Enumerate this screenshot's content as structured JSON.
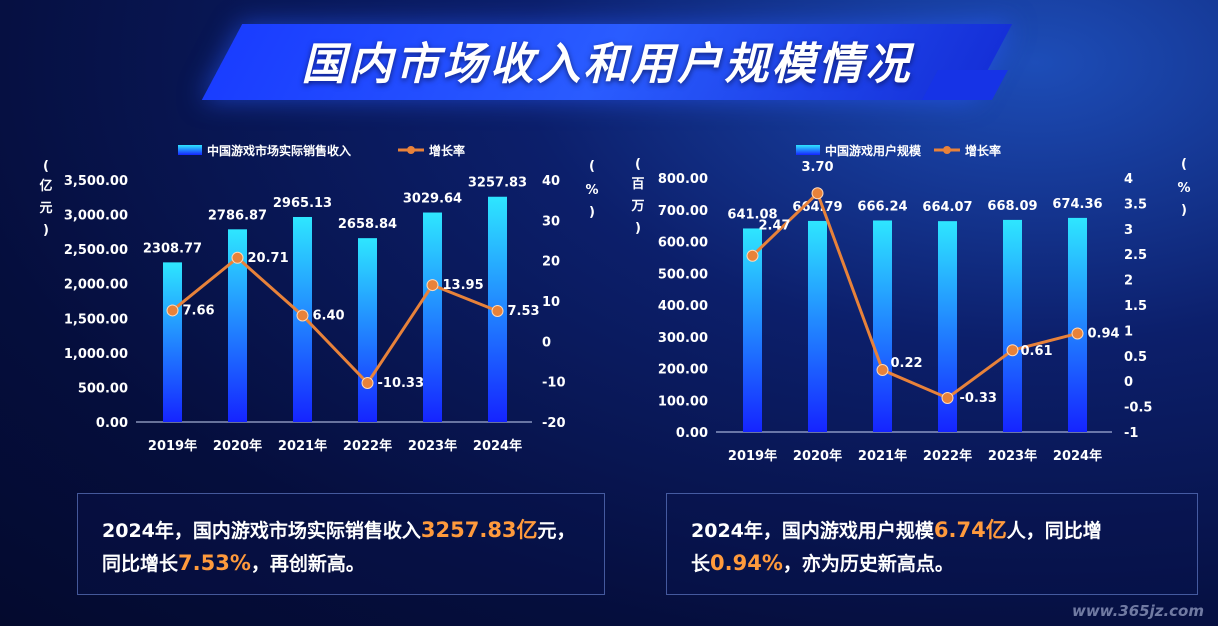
{
  "page": {
    "title": "国内市场收入和用户规模情况",
    "watermark": "www.365jz.com"
  },
  "colors": {
    "bar_top": "#2ee6ff",
    "bar_bottom": "#1524ff",
    "line": "#e8823a",
    "highlight": "#ff9a3c"
  },
  "chart_data": [
    {
      "type": "bar",
      "categories": [
        "2019年",
        "2020年",
        "2021年",
        "2022年",
        "2023年",
        "2024年"
      ],
      "series": [
        {
          "name": "中国游戏市场实际销售收入",
          "type": "bar",
          "axis": "left",
          "values": [
            2308.77,
            2786.87,
            2965.13,
            2658.84,
            3029.64,
            3257.83
          ],
          "labels": [
            "2308.77",
            "2786.87",
            "2965.13",
            "2658.84",
            "3029.64",
            "3257.83"
          ]
        },
        {
          "name": "增长率",
          "type": "line",
          "axis": "right",
          "values": [
            7.66,
            20.71,
            6.4,
            -10.33,
            13.95,
            7.53
          ],
          "labels": [
            "7.66",
            "20.71",
            "6.40",
            "-10.33",
            "13.95",
            "7.53"
          ]
        }
      ],
      "ylabel": "亿元",
      "y2label": "%",
      "ylim": [
        0,
        3500
      ],
      "y2lim": [
        -20,
        40
      ],
      "yticks": [
        "0.00",
        "500.00",
        "1,000.00",
        "1,500.00",
        "2,000.00",
        "2,500.00",
        "3,000.00",
        "3,500.00"
      ],
      "y2ticks": [
        "-20",
        "-10",
        "0",
        "10",
        "20",
        "30",
        "40"
      ],
      "legend": "top-left",
      "grid": false
    },
    {
      "type": "bar",
      "categories": [
        "2019年",
        "2020年",
        "2021年",
        "2022年",
        "2023年",
        "2024年"
      ],
      "series": [
        {
          "name": "中国游戏用户规模",
          "type": "bar",
          "axis": "left",
          "values": [
            641.08,
            664.79,
            666.24,
            664.07,
            668.09,
            674.36
          ],
          "labels": [
            "641.08",
            "664.79",
            "666.24",
            "664.07",
            "668.09",
            "674.36"
          ]
        },
        {
          "name": "增长率",
          "type": "line",
          "axis": "right",
          "values": [
            2.47,
            3.7,
            0.22,
            -0.33,
            0.61,
            0.94
          ],
          "labels": [
            "2.47",
            "3.70",
            "0.22",
            "-0.33",
            "0.61",
            "0.94"
          ]
        }
      ],
      "ylabel": "百万",
      "y2label": "%",
      "ylim": [
        0,
        800
      ],
      "y2lim": [
        -1,
        4
      ],
      "yticks": [
        "0.00",
        "100.00",
        "200.00",
        "300.00",
        "400.00",
        "500.00",
        "600.00",
        "700.00",
        "800.00"
      ],
      "y2ticks": [
        "-1",
        "-0.5",
        "0",
        "0.5",
        "1",
        "1.5",
        "2",
        "2.5",
        "3",
        "3.5",
        "4"
      ],
      "legend": "top-left",
      "grid": false
    }
  ],
  "summaries": [
    {
      "pre": "2024年，国内游戏市场实际销售收入",
      "hl1": "3257.83亿",
      "mid1": "元，",
      "line2_pre": "同比增长",
      "hl2": "7.53%",
      "post": "，再创新高。"
    },
    {
      "pre": "2024年，国内游戏用户规模",
      "hl1": "6.74亿",
      "mid1": "人，同比增",
      "line2_pre": "长",
      "hl2": "0.94%",
      "post": "，亦为历史新高点。"
    }
  ]
}
